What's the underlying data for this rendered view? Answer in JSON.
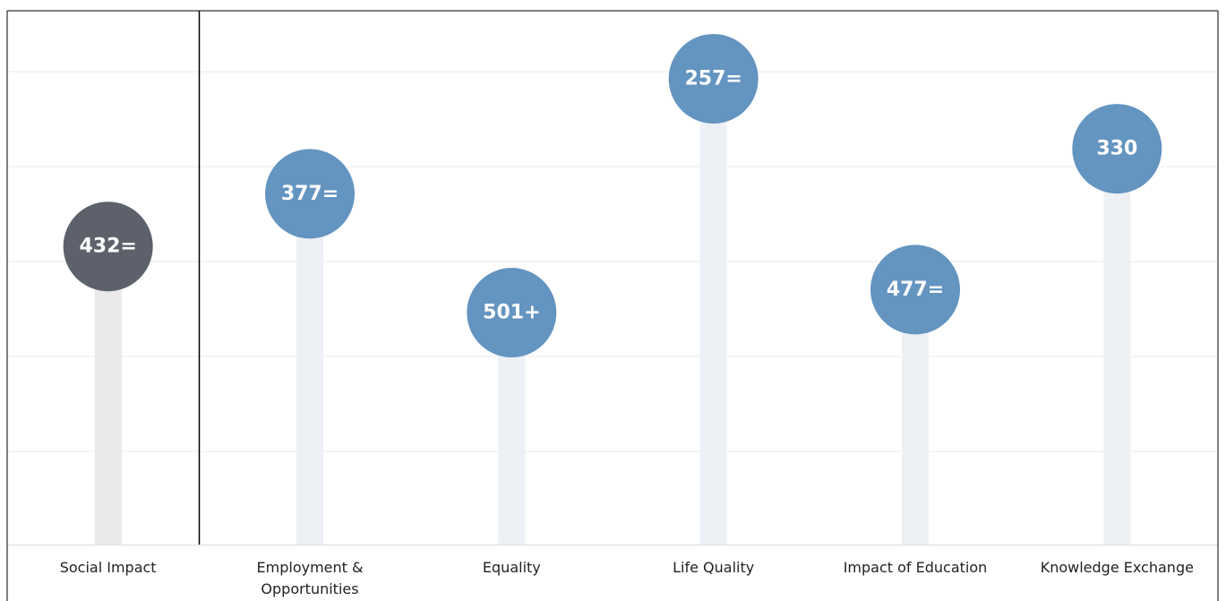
{
  "chart_data": {
    "type": "lollipop",
    "categories": [
      "Social Impact",
      "Employment & Opportunities",
      "Equality",
      "Life Quality",
      "Impact of Education",
      "Knowledge Exchange"
    ],
    "values": [
      432,
      377,
      501,
      257,
      477,
      330
    ],
    "value_labels": [
      "432=",
      "377=",
      "501+",
      "257=",
      "477=",
      "330"
    ],
    "colors": [
      "#5c616b",
      "#6494c0",
      "#6494c0",
      "#6494c0",
      "#6494c0",
      "#6494c0"
    ],
    "stem_colors": [
      "#e9e9e9",
      "#edf1f5",
      "#edf1f5",
      "#edf1f5",
      "#edf1f5",
      "#edf1f5"
    ],
    "ylim": [
      743,
      186
    ]
  }
}
